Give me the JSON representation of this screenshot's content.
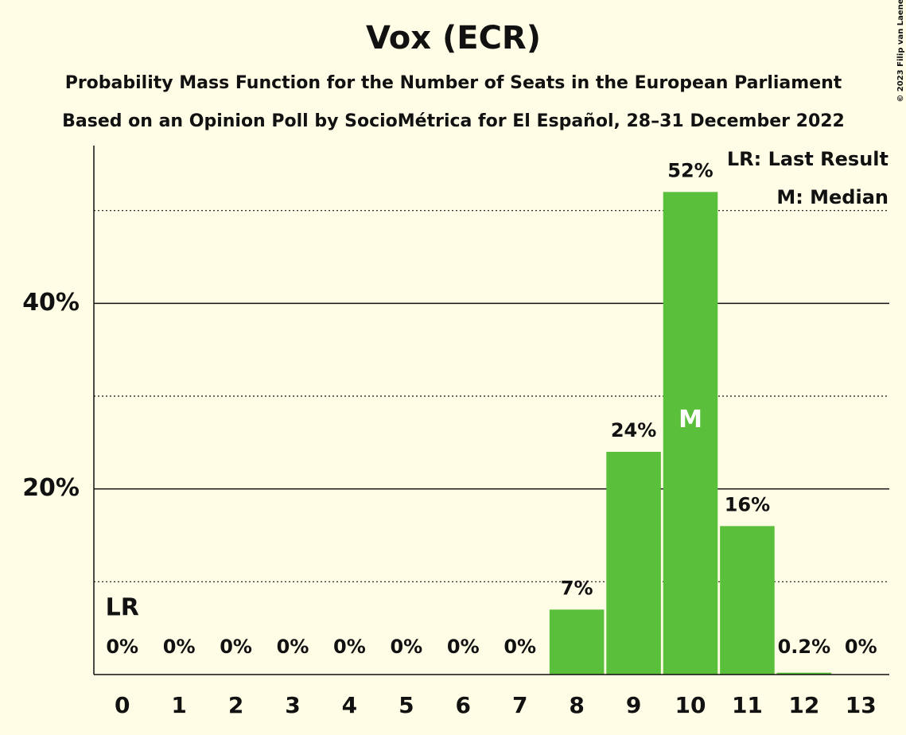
{
  "chart_data": {
    "type": "bar",
    "title": "Vox (ECR)",
    "subtitle": "Probability Mass Function for the Number of Seats in the European Parliament",
    "subtitle2": "Based on an Opinion Poll by SocioMétrica for El Español, 28–31 December 2022",
    "copyright": "© 2023 Filip van Laenen",
    "categories": [
      "0",
      "1",
      "2",
      "3",
      "4",
      "5",
      "6",
      "7",
      "8",
      "9",
      "10",
      "11",
      "12",
      "13"
    ],
    "values": [
      0,
      0,
      0,
      0,
      0,
      0,
      0,
      0,
      7,
      24,
      52,
      16,
      0.2,
      0
    ],
    "value_labels": [
      "0%",
      "0%",
      "0%",
      "0%",
      "0%",
      "0%",
      "0%",
      "0%",
      "7%",
      "24%",
      "52%",
      "16%",
      "0.2%",
      "0%"
    ],
    "color": "#5abf3a",
    "ylim": [
      0,
      57
    ],
    "yticks": [
      {
        "value": 20,
        "label": "20%"
      },
      {
        "value": 40,
        "label": "40%"
      }
    ],
    "minor_yticks": [
      10,
      30,
      50
    ],
    "grid": true,
    "last_result": {
      "label": "LR",
      "category": 0
    },
    "median": {
      "label": "M",
      "category": 10
    },
    "legend": [
      "LR: Last Result",
      "M: Median"
    ]
  }
}
